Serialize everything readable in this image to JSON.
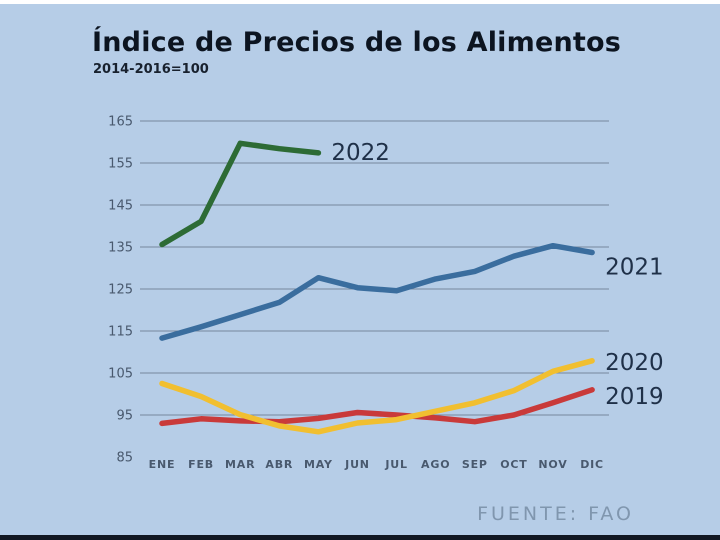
{
  "page": {
    "title": "Índice de Precios de los Alimentos",
    "subtitle": "2014-2016=100",
    "source": "FUENTE: FAO"
  },
  "colors": {
    "background": "#b6cde7",
    "grid": "#75879e",
    "axis_text": "#49596e",
    "title_text": "#0c1420",
    "source_text": "#8096ae"
  },
  "chart_data": {
    "type": "line",
    "title": "Índice de Precios de los Alimentos",
    "subtitle": "2014-2016=100",
    "source": "FUENTE: FAO",
    "categories": [
      "ENE",
      "FEB",
      "MAR",
      "ABR",
      "MAY",
      "JUN",
      "JUL",
      "AGO",
      "SEP",
      "OCT",
      "NOV",
      "DIC"
    ],
    "yticks": [
      85,
      95,
      105,
      115,
      125,
      135,
      145,
      155,
      165
    ],
    "ylim": [
      85,
      165
    ],
    "grid": "horizontal gridlines at each y tick except 85",
    "legend_position": "inline year labels at right end of each line",
    "series": [
      {
        "name": "2021",
        "color": "#3a6d9e",
        "values": [
          113.3,
          116.0,
          118.9,
          121.8,
          127.7,
          125.3,
          124.6,
          127.4,
          129.2,
          132.8,
          135.3,
          133.7
        ]
      },
      {
        "name": "2022",
        "color": "#2d6b35",
        "values": [
          135.6,
          141.1,
          159.7,
          158.4,
          157.4
        ]
      },
      {
        "name": "2019",
        "color": "#c93a3a",
        "values": [
          93.0,
          94.1,
          93.6,
          93.4,
          94.2,
          95.6,
          95.0,
          94.3,
          93.4,
          95.0,
          97.9,
          101.0
        ]
      },
      {
        "name": "2020",
        "color": "#f1bf30",
        "values": [
          102.5,
          99.4,
          95.1,
          92.4,
          91.0,
          93.1,
          93.9,
          95.9,
          97.9,
          100.8,
          105.4,
          107.9
        ]
      }
    ]
  }
}
